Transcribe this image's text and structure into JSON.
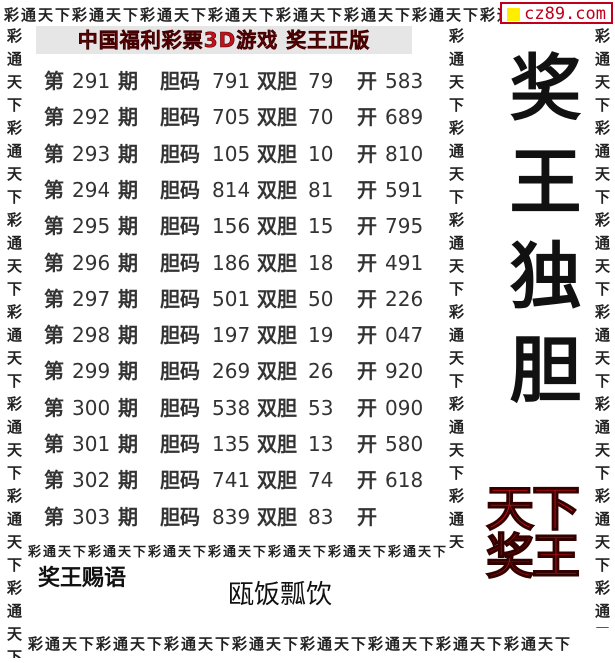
{
  "watermark": "cz89.com",
  "border_text": "彩通天下彩通天下彩通天下彩通天下彩通天下彩通天下彩通天下彩通天下",
  "title": "中国福利彩票3D游戏 奖王正版",
  "labels": {
    "period_prefix": "第",
    "period_suffix": "期",
    "dan": "胆码",
    "shuangdan": "双胆",
    "open": "开"
  },
  "rows": [
    {
      "period": "291",
      "dan": "791",
      "shuangdan": "79",
      "open": "583"
    },
    {
      "period": "292",
      "dan": "705",
      "shuangdan": "70",
      "open": "689"
    },
    {
      "period": "293",
      "dan": "105",
      "shuangdan": "10",
      "open": "810"
    },
    {
      "period": "294",
      "dan": "814",
      "shuangdan": "81",
      "open": "591"
    },
    {
      "period": "295",
      "dan": "156",
      "shuangdan": "15",
      "open": "795"
    },
    {
      "period": "296",
      "dan": "186",
      "shuangdan": "18",
      "open": "491"
    },
    {
      "period": "297",
      "dan": "501",
      "shuangdan": "50",
      "open": "226"
    },
    {
      "period": "298",
      "dan": "197",
      "shuangdan": "19",
      "open": "047"
    },
    {
      "period": "299",
      "dan": "269",
      "shuangdan": "26",
      "open": "920"
    },
    {
      "period": "300",
      "dan": "538",
      "shuangdan": "53",
      "open": "090"
    },
    {
      "period": "301",
      "dan": "135",
      "shuangdan": "13",
      "open": "580"
    },
    {
      "period": "302",
      "dan": "741",
      "shuangdan": "74",
      "open": "618"
    },
    {
      "period": "303",
      "dan": "839",
      "shuangdan": "83",
      "open": ""
    }
  ],
  "big_title": "奖王独胆",
  "red_logo": "天下奖王",
  "saying_label": "奖王赐语",
  "saying": "瓯饭瓢饮",
  "colors": {
    "title_red": "#c8101c",
    "logo_red": "#e0101a",
    "watermark_yellow": "#ffee00"
  }
}
